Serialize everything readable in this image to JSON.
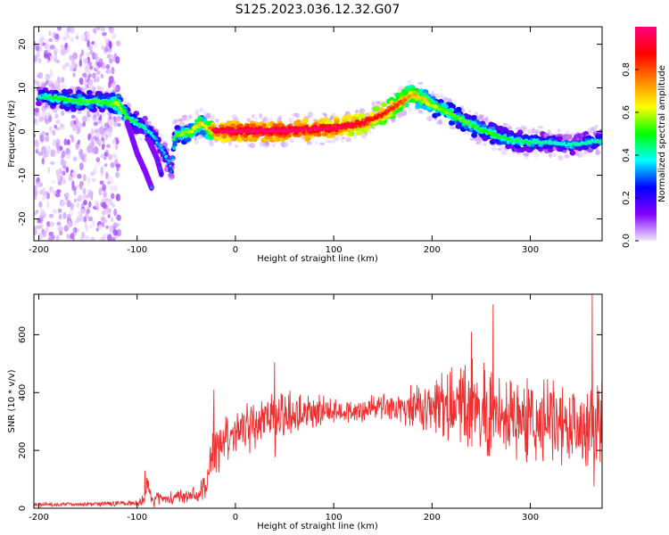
{
  "title": "S125.2023.036.12.32.G07",
  "chart_data": [
    {
      "type": "heatmap",
      "title": "S125.2023.036.12.32.G07",
      "xlabel": "Height of straight line (km)",
      "ylabel": "Frequency (Hz)",
      "xlim": [
        -205,
        373
      ],
      "ylim": [
        -25,
        24
      ],
      "x_ticks": [
        -200,
        -100,
        0,
        100,
        200,
        300
      ],
      "y_ticks": [
        -20,
        -10,
        0,
        10,
        20
      ],
      "colorbar": {
        "label": "Normalized spectral amplitude",
        "range": [
          0,
          1
        ],
        "ticks": [
          0.0,
          0.2,
          0.4,
          0.6,
          0.8
        ],
        "colormap": [
          "#f2e6ff",
          "#8000ff",
          "#0000ff",
          "#00ffff",
          "#00ff00",
          "#ffff00",
          "#ff8000",
          "#ff0000",
          "#ff007f"
        ]
      },
      "ridge": {
        "x": [
          -200,
          -180,
          -160,
          -140,
          -130,
          -120,
          -110,
          -100,
          -90,
          -80,
          -70,
          -65,
          -62,
          -55,
          -45,
          -35,
          -30,
          -20,
          0,
          50,
          100,
          130,
          150,
          170,
          180,
          190,
          200,
          210,
          220,
          240,
          260,
          280,
          300,
          320,
          340,
          360,
          373
        ],
        "y": [
          8,
          7.5,
          7,
          6.8,
          6.5,
          6.5,
          3,
          2,
          0.5,
          -2,
          -6,
          -9,
          -1,
          -0.5,
          0,
          2,
          1,
          0.2,
          0.1,
          0.2,
          0.8,
          2,
          4,
          7,
          8.5,
          7.5,
          6,
          5,
          4,
          1.5,
          -0.5,
          -2,
          -2.5,
          -2.5,
          -3,
          -2.5,
          -2
        ],
        "amplitude": [
          0.35,
          0.45,
          0.45,
          0.45,
          0.45,
          0.55,
          0.45,
          0.4,
          0.35,
          0.3,
          0.3,
          0.25,
          0.45,
          0.5,
          0.55,
          0.6,
          0.55,
          0.9,
          0.95,
          0.95,
          0.9,
          0.85,
          0.8,
          0.75,
          0.65,
          0.6,
          0.55,
          0.5,
          0.5,
          0.45,
          0.45,
          0.4,
          0.4,
          0.35,
          0.35,
          0.35,
          0.35
        ]
      },
      "branches": [
        {
          "x": [
            -110,
            -100,
            -92,
            -85
          ],
          "y": [
            2,
            -5,
            -9,
            -13
          ]
        },
        {
          "x": [
            -88,
            -80,
            -75
          ],
          "y": [
            -2,
            -6,
            -10
          ]
        }
      ],
      "noise_region_x": [
        -205,
        -118
      ],
      "grid": false
    },
    {
      "type": "line",
      "xlabel": "Height of straight line (km)",
      "ylabel": "SNR (10 * v/v)",
      "xlim": [
        -205,
        373
      ],
      "ylim": [
        0,
        740
      ],
      "x_ticks": [
        -200,
        -100,
        0,
        100,
        200,
        300
      ],
      "y_ticks": [
        0,
        200,
        400,
        600
      ],
      "color": "#ee3030",
      "envelope": {
        "x": [
          -205,
          -150,
          -100,
          -92,
          -90,
          -85,
          -60,
          -40,
          -30,
          -25,
          -22,
          -15,
          -5,
          0,
          20,
          40,
          60,
          80,
          100,
          120,
          150,
          170,
          200,
          220,
          240,
          260,
          280,
          300,
          320,
          340,
          360,
          373
        ],
        "mean": [
          12,
          15,
          18,
          35,
          90,
          30,
          35,
          45,
          90,
          160,
          200,
          215,
          240,
          265,
          300,
          315,
          325,
          335,
          335,
          340,
          345,
          350,
          360,
          355,
          345,
          330,
          320,
          310,
          300,
          300,
          290,
          280
        ],
        "spread": [
          6,
          8,
          10,
          20,
          40,
          25,
          25,
          30,
          45,
          80,
          120,
          90,
          80,
          80,
          90,
          95,
          80,
          60,
          45,
          45,
          50,
          60,
          100,
          120,
          150,
          170,
          150,
          140,
          140,
          150,
          170,
          200
        ]
      },
      "spikes": [
        {
          "x": -92,
          "y": 130
        },
        {
          "x": -22,
          "y": 410
        },
        {
          "x": 40,
          "y": 505
        },
        {
          "x": 240,
          "y": 610
        },
        {
          "x": 262,
          "y": 705
        },
        {
          "x": 363,
          "y": 740
        }
      ],
      "grid": false
    }
  ]
}
